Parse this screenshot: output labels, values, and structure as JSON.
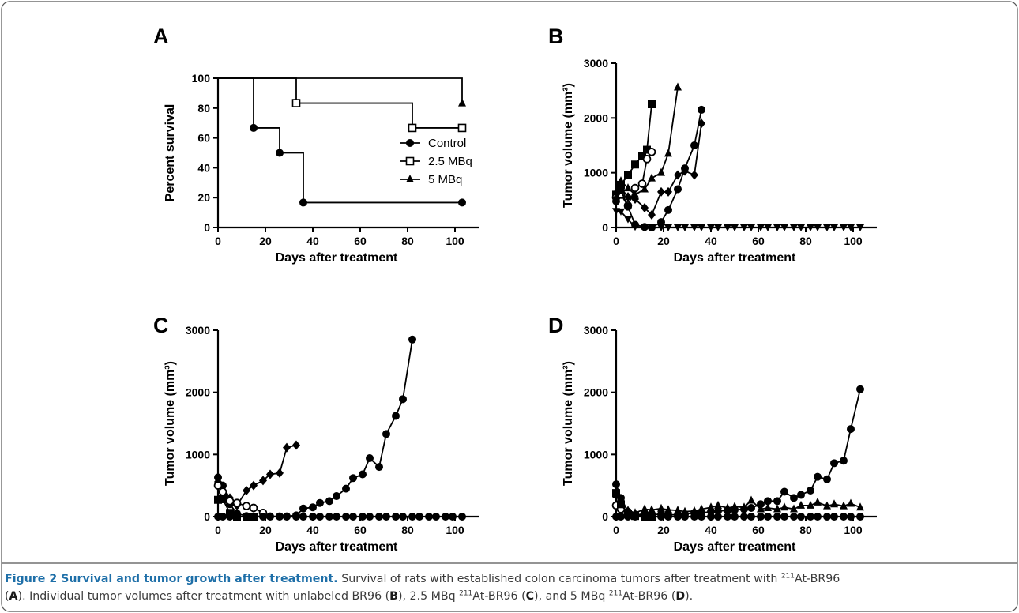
{
  "panels": [
    {
      "label": "A"
    },
    {
      "label": "B"
    },
    {
      "label": "C"
    },
    {
      "label": "D"
    }
  ],
  "caption": {
    "title": "Figure 2 Survival and tumor growth after treatment.",
    "line1_a": " Survival of rats with established colon carcinoma tumors after treatment with ",
    "iso": "211",
    "agent": "At-BR96",
    "line2_a": "(",
    "A": "A",
    "line2_b": "). Individual tumor volumes after treatment with unlabeled BR96 (",
    "B": "B",
    "line2_c": "), 2.5 MBq ",
    "line2_d": " (",
    "C": "C",
    "line2_e": "), and 5 MBq ",
    "line2_f": " (",
    "D": "D",
    "line2_g": ")."
  },
  "chart_data": [
    {
      "panel": "A",
      "type": "line",
      "step": true,
      "xlabel": "Days after treatment",
      "ylabel": "Percent survival",
      "xlim": [
        0,
        110
      ],
      "ylim": [
        0,
        100
      ],
      "xticks": [
        0,
        20,
        40,
        60,
        80,
        100
      ],
      "yticks": [
        0,
        20,
        40,
        60,
        80,
        100
      ],
      "legend_position": "center-right",
      "series": [
        {
          "name": "Control",
          "marker": "filled-circle",
          "x": [
            0,
            15,
            26,
            36,
            103
          ],
          "y": [
            100,
            66.7,
            50,
            16.7,
            16.7
          ]
        },
        {
          "name": "2.5 MBq",
          "marker": "open-square",
          "x": [
            0,
            33,
            82,
            103
          ],
          "y": [
            100,
            83.3,
            66.7,
            66.7
          ]
        },
        {
          "name": "5 MBq",
          "marker": "filled-triangle",
          "x": [
            0,
            103
          ],
          "y": [
            100,
            83.3
          ]
        }
      ]
    },
    {
      "panel": "B",
      "type": "line",
      "xlabel": "Days after treatment",
      "ylabel": "Tumor volume (mm³)",
      "xlim": [
        0,
        110
      ],
      "ylim": [
        0,
        3000
      ],
      "xticks": [
        0,
        20,
        40,
        60,
        80,
        100
      ],
      "yticks": [
        0,
        1000,
        2000,
        3000
      ],
      "series": [
        {
          "marker": "filled-square",
          "x": [
            0,
            2,
            5,
            8,
            11,
            13,
            15
          ],
          "y": [
            600,
            780,
            960,
            1150,
            1310,
            1420,
            2250
          ]
        },
        {
          "marker": "open-circle",
          "x": [
            0,
            2,
            5,
            8,
            11,
            13,
            15
          ],
          "y": [
            550,
            600,
            400,
            720,
            800,
            1250,
            1380
          ]
        },
        {
          "marker": "filled-triangle",
          "x": [
            0,
            2,
            5,
            8,
            12,
            15,
            19,
            22,
            26
          ],
          "y": [
            650,
            850,
            720,
            600,
            700,
            900,
            1000,
            1350,
            2560
          ]
        },
        {
          "marker": "filled-diamond",
          "x": [
            0,
            2,
            5,
            8,
            12,
            15,
            19,
            22,
            26,
            29,
            33,
            36
          ],
          "y": [
            530,
            720,
            560,
            520,
            360,
            230,
            650,
            650,
            960,
            1030,
            960,
            1900
          ]
        },
        {
          "marker": "filled-circle",
          "x": [
            0,
            2,
            5,
            8,
            12,
            15,
            19,
            22,
            26,
            29,
            33,
            36
          ],
          "y": [
            480,
            680,
            380,
            50,
            10,
            0,
            100,
            320,
            700,
            1080,
            1500,
            2150
          ]
        },
        {
          "marker": "filled-down-triangle",
          "x": [
            0,
            2,
            5,
            8,
            12,
            15,
            19,
            22,
            26,
            29,
            33,
            36,
            40,
            43,
            47,
            50,
            54,
            57,
            61,
            64,
            68,
            71,
            75,
            78,
            82,
            85,
            89,
            92,
            96,
            99,
            103
          ],
          "y": [
            300,
            290,
            150,
            10,
            0,
            0,
            0,
            0,
            0,
            0,
            0,
            0,
            0,
            0,
            0,
            0,
            0,
            0,
            0,
            0,
            0,
            0,
            0,
            0,
            0,
            0,
            0,
            0,
            0,
            0,
            0
          ]
        }
      ]
    },
    {
      "panel": "C",
      "type": "line",
      "xlabel": "Days after treatment",
      "ylabel": "Tumor volume (mm³)",
      "xlim": [
        0,
        110
      ],
      "ylim": [
        0,
        3000
      ],
      "xticks": [
        0,
        20,
        40,
        60,
        80,
        100
      ],
      "yticks": [
        0,
        1000,
        2000,
        3000
      ],
      "series": [
        {
          "marker": "filled-diamond",
          "x": [
            0,
            2,
            5,
            8,
            12,
            15,
            19,
            22,
            26,
            29,
            33
          ],
          "y": [
            560,
            480,
            300,
            180,
            420,
            500,
            580,
            680,
            700,
            1110,
            1150
          ]
        },
        {
          "marker": "filled-circle",
          "x": [
            0,
            2,
            5,
            8,
            12,
            15,
            19,
            22,
            26,
            29,
            33,
            36,
            40,
            43,
            47,
            50,
            54,
            57,
            61,
            64,
            68,
            71,
            75,
            78,
            82
          ],
          "y": [
            630,
            500,
            200,
            50,
            10,
            5,
            5,
            5,
            5,
            5,
            20,
            130,
            150,
            220,
            250,
            330,
            450,
            620,
            680,
            940,
            800,
            1330,
            1620,
            1890,
            2850
          ]
        },
        {
          "marker": "open-circle",
          "x": [
            0,
            2,
            5,
            8,
            12,
            15,
            19
          ],
          "y": [
            500,
            400,
            250,
            220,
            170,
            140,
            60
          ]
        },
        {
          "marker": "filled-square",
          "x": [
            0,
            2,
            5,
            8,
            12,
            15
          ],
          "y": [
            270,
            280,
            60,
            0,
            0,
            0
          ]
        },
        {
          "marker": "filled-circle",
          "x": [
            0,
            2,
            5,
            8,
            12,
            15,
            19,
            22,
            26,
            29,
            33,
            36,
            40,
            43,
            47,
            50,
            54,
            57,
            61,
            64,
            68,
            71,
            75,
            78,
            82,
            85,
            89,
            92,
            96,
            99,
            103
          ],
          "y": [
            0,
            0,
            0,
            0,
            0,
            0,
            0,
            0,
            0,
            0,
            0,
            0,
            0,
            0,
            0,
            0,
            0,
            0,
            0,
            0,
            0,
            0,
            0,
            0,
            0,
            0,
            0,
            0,
            0,
            0,
            0
          ]
        }
      ]
    },
    {
      "panel": "D",
      "type": "line",
      "xlabel": "Days after treatment",
      "ylabel": "Tumor volume (mm³)",
      "xlim": [
        0,
        110
      ],
      "ylim": [
        0,
        3000
      ],
      "xticks": [
        0,
        20,
        40,
        60,
        80,
        100
      ],
      "yticks": [
        0,
        1000,
        2000,
        3000
      ],
      "series": [
        {
          "marker": "filled-circle",
          "x": [
            0,
            2,
            5,
            8,
            12,
            15,
            19,
            22,
            26,
            29,
            33,
            36,
            40,
            43,
            47,
            50,
            54,
            57,
            61,
            64,
            68,
            71,
            75,
            78,
            82,
            85,
            89,
            92,
            96,
            99,
            103
          ],
          "y": [
            520,
            300,
            80,
            20,
            50,
            30,
            40,
            30,
            30,
            40,
            60,
            60,
            80,
            90,
            100,
            110,
            120,
            140,
            200,
            250,
            250,
            400,
            300,
            350,
            420,
            640,
            600,
            860,
            900,
            1410,
            2050
          ]
        },
        {
          "marker": "filled-triangle",
          "x": [
            0,
            2,
            5,
            8,
            12,
            15,
            19,
            22,
            26,
            29,
            33,
            36,
            40,
            43,
            47,
            50,
            54,
            57,
            61,
            64,
            68,
            71,
            75,
            78,
            82,
            85,
            89,
            92,
            96,
            99,
            103
          ],
          "y": [
            350,
            250,
            100,
            60,
            120,
            110,
            130,
            110,
            100,
            80,
            90,
            120,
            150,
            180,
            140,
            160,
            150,
            260,
            120,
            140,
            120,
            150,
            120,
            180,
            180,
            230,
            170,
            200,
            170,
            210,
            150
          ]
        },
        {
          "marker": "open-circle",
          "x": [
            0,
            2,
            5,
            8,
            12
          ],
          "y": [
            180,
            120,
            60,
            20,
            10
          ]
        },
        {
          "marker": "filled-square",
          "x": [
            0,
            2,
            5,
            8,
            12,
            15
          ],
          "y": [
            380,
            200,
            50,
            10,
            0,
            0
          ]
        },
        {
          "marker": "filled-circle",
          "x": [
            0,
            2,
            5,
            8,
            12,
            15,
            19,
            22,
            26,
            29,
            33,
            36,
            40,
            43,
            47,
            50,
            54,
            57,
            61,
            64,
            68,
            71,
            75,
            78,
            82,
            85,
            89,
            92,
            96,
            99,
            103
          ],
          "y": [
            0,
            0,
            0,
            0,
            0,
            0,
            0,
            0,
            0,
            0,
            0,
            0,
            0,
            0,
            0,
            0,
            0,
            0,
            0,
            0,
            0,
            0,
            0,
            0,
            0,
            0,
            0,
            0,
            0,
            0,
            0
          ]
        }
      ]
    }
  ]
}
